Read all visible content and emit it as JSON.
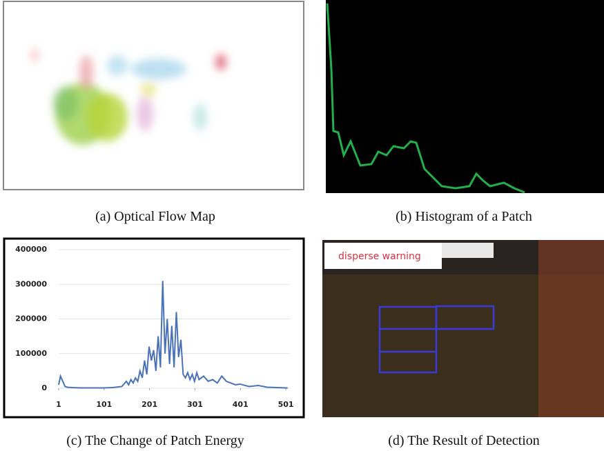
{
  "panels": {
    "a": {
      "caption": "(a) Optical Flow Map"
    },
    "b": {
      "caption": "(b) Histogram of a Patch"
    },
    "c": {
      "caption": "(c) The Change of Patch Energy"
    },
    "d": {
      "caption": "(d) The Result of Detection",
      "warning": "disperse warning"
    }
  },
  "chart_data": {
    "type": "line",
    "x": [
      1,
      5,
      10,
      15,
      20,
      30,
      50,
      80,
      100,
      120,
      140,
      150,
      155,
      160,
      165,
      170,
      175,
      180,
      185,
      190,
      195,
      200,
      205,
      210,
      215,
      220,
      225,
      230,
      235,
      240,
      245,
      250,
      255,
      260,
      265,
      270,
      275,
      280,
      285,
      290,
      295,
      300,
      305,
      310,
      320,
      330,
      340,
      350,
      360,
      370,
      380,
      390,
      400,
      420,
      440,
      460,
      480,
      500,
      505
    ],
    "series": [
      {
        "color": "#4a72b8",
        "values": [
          10000,
          35000,
          20000,
          5000,
          3000,
          2000,
          1000,
          1000,
          1000,
          2000,
          5000,
          20000,
          10000,
          25000,
          15000,
          30000,
          20000,
          50000,
          30000,
          80000,
          40000,
          120000,
          80000,
          110000,
          50000,
          150000,
          60000,
          310000,
          100000,
          200000,
          70000,
          180000,
          60000,
          220000,
          90000,
          140000,
          40000,
          30000,
          45000,
          25000,
          40000,
          20000,
          45000,
          25000,
          35000,
          20000,
          25000,
          15000,
          35000,
          20000,
          15000,
          10000,
          12000,
          5000,
          8000,
          3000,
          2000,
          1000,
          1000
        ]
      }
    ],
    "xlim": [
      1,
      510
    ],
    "ylim": [
      0,
      400000
    ],
    "xticks": [
      1,
      101,
      201,
      301,
      401,
      501
    ],
    "yticks": [
      0,
      100000,
      200000,
      300000,
      400000
    ],
    "grid": true
  }
}
